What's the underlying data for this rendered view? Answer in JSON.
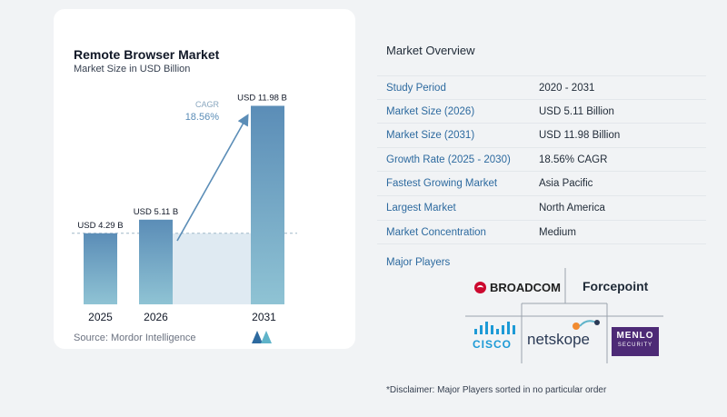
{
  "chart_data": {
    "type": "bar",
    "title": "Remote Browser Market",
    "subtitle": "Market Size in USD Billion",
    "categories": [
      "2025",
      "2026",
      "2031"
    ],
    "values": [
      4.29,
      5.11,
      11.98
    ],
    "data_labels": [
      "USD 4.29 B",
      "USD 5.11 B",
      "USD 11.98 B"
    ],
    "annotation": {
      "label": "CAGR",
      "value": "18.56%"
    },
    "xlabel": "",
    "ylabel": "",
    "ylim": [
      0,
      12.5
    ],
    "grid": false,
    "colors": {
      "bar_top": "#5b8db7",
      "bar_bottom": "#8fc3d4",
      "band": "#dfeaf2",
      "arrow": "#5b8db7",
      "cagr": "#5b8db7"
    }
  },
  "source": "Source: Mordor Intelligence",
  "overview": {
    "title": "Market Overview",
    "rows": [
      {
        "label": "Study Period",
        "value": "2020 - 2031"
      },
      {
        "label": "Market Size (2026)",
        "value": "USD 5.11 Billion"
      },
      {
        "label": "Market Size (2031)",
        "value": "USD 11.98 Billion"
      },
      {
        "label": "Growth Rate (2025 - 2030)",
        "value": "18.56% CAGR"
      },
      {
        "label": "Fastest Growing Market",
        "value": "Asia Pacific"
      },
      {
        "label": "Largest Market",
        "value": "North America"
      },
      {
        "label": "Market Concentration",
        "value": "Medium"
      }
    ]
  },
  "players": {
    "title": "Major Players",
    "names": [
      "BROADCOM",
      "Forcepoint",
      "CISCO",
      "netskope",
      "MENLO",
      "SECURITY"
    ]
  },
  "disclaimer": "*Disclaimer: Major Players sorted in no particular order"
}
